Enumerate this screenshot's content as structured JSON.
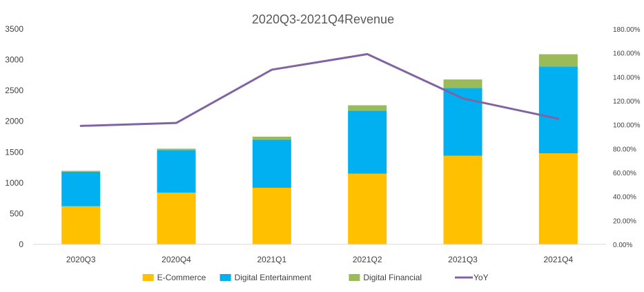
{
  "chart_data": {
    "type": "bar",
    "stacked": true,
    "title": "2020Q3-2021Q4Revenue",
    "categories": [
      "2020Q3",
      "2020Q4",
      "2021Q1",
      "2021Q2",
      "2021Q3",
      "2021Q4"
    ],
    "series": [
      {
        "name": "E-Commerce",
        "type": "bar",
        "axis": "left",
        "color": "#FFC000",
        "values": [
          620,
          840,
          920,
          1150,
          1440,
          1480
        ]
      },
      {
        "name": "Digital Entertainment",
        "type": "bar",
        "axis": "left",
        "color": "#00B0F0",
        "values": [
          560,
          690,
          780,
          1020,
          1100,
          1410
        ]
      },
      {
        "name": "Digital Financial",
        "type": "bar",
        "axis": "left",
        "color": "#9BBB59",
        "values": [
          15,
          25,
          50,
          90,
          140,
          200
        ]
      },
      {
        "name": "YoY",
        "type": "line",
        "axis": "right",
        "color": "#8064A2",
        "values": [
          99,
          101.5,
          146,
          159,
          122,
          105
        ]
      }
    ],
    "y_left": {
      "min": 0,
      "max": 3500,
      "step": 500,
      "ticks": [
        "0",
        "500",
        "1000",
        "1500",
        "2000",
        "2500",
        "3000",
        "3500"
      ]
    },
    "y_right": {
      "min": 0,
      "max": 180,
      "step": 20,
      "ticks": [
        "0.00%",
        "20.00%",
        "40.00%",
        "60.00%",
        "80.00%",
        "100.00%",
        "120.00%",
        "140.00%",
        "160.00%",
        "180.00%"
      ]
    },
    "legend_position": "bottom",
    "grid": false
  }
}
